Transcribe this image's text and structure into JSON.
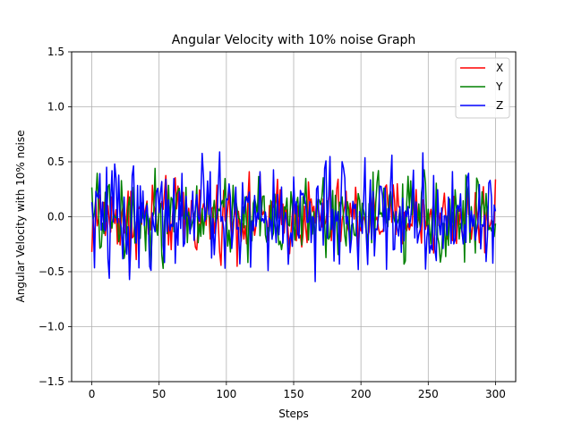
{
  "chart_data": {
    "type": "line",
    "title": "Angular Velocity with 10% noise Graph",
    "xlabel": "Steps",
    "ylabel": "Angular Velocity with 10% noise",
    "xlim": [
      -15,
      315
    ],
    "ylim": [
      -1.5,
      1.5
    ],
    "x_ticks": [
      0,
      50,
      100,
      150,
      200,
      250,
      300
    ],
    "y_ticks": [
      -1.5,
      -1.0,
      -0.5,
      0.0,
      0.5,
      1.0,
      1.5
    ],
    "x_tick_labels": [
      "0",
      "50",
      "100",
      "150",
      "200",
      "250",
      "300"
    ],
    "y_tick_labels": [
      "−1.5",
      "−1.0",
      "−0.5",
      "0.0",
      "0.5",
      "1.0",
      "1.5"
    ],
    "grid": true,
    "legend_position": "top-right",
    "x": {
      "start": 0,
      "end": 300,
      "step": 1
    },
    "series": [
      {
        "name": "X",
        "color": "#ff0000",
        "noise_range": [
          -0.54,
          0.4
        ],
        "mean": 0.0
      },
      {
        "name": "Y",
        "color": "#008000",
        "noise_range": [
          -0.47,
          0.44
        ],
        "mean": 0.0
      },
      {
        "name": "Z",
        "color": "#0000ff",
        "noise_range": [
          -0.56,
          0.56
        ],
        "mean": 0.0
      }
    ],
    "annotated_points": {
      "X": [
        [
          0,
          -0.32
        ],
        [
          28,
          -0.54
        ],
        [
          300,
          0.34
        ]
      ],
      "Y": [
        [
          53,
          -0.47
        ],
        [
          47,
          0.44
        ],
        [
          213,
          0.42
        ]
      ],
      "Z": [
        [
          13,
          -0.56
        ],
        [
          17,
          0.48
        ],
        [
          88,
          0.41
        ],
        [
          131,
          -0.49
        ],
        [
          223,
          0.56
        ],
        [
          300,
          0.05
        ]
      ]
    }
  }
}
